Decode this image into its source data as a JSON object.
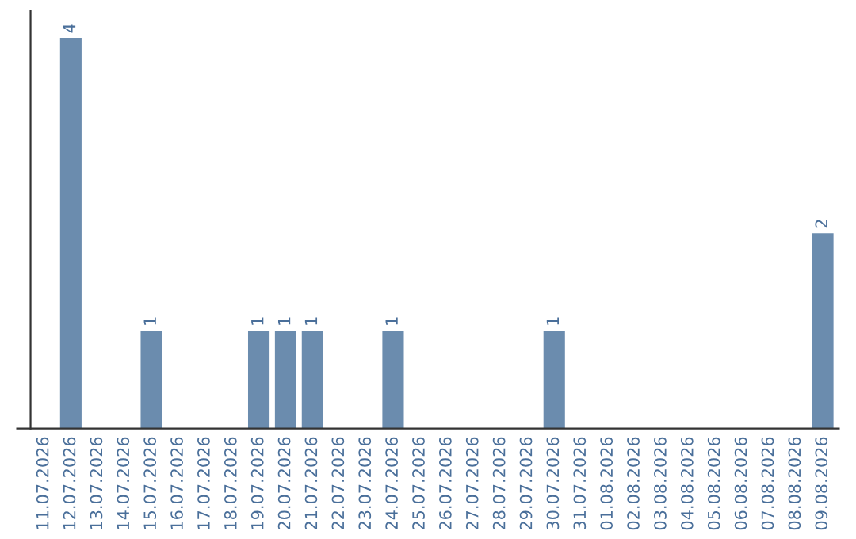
{
  "chart_data": {
    "type": "bar",
    "categories": [
      "11.07.2026",
      "12.07.2026",
      "13.07.2026",
      "14.07.2026",
      "15.07.2026",
      "16.07.2026",
      "17.07.2026",
      "18.07.2026",
      "19.07.2026",
      "20.07.2026",
      "21.07.2026",
      "22.07.2026",
      "23.07.2026",
      "24.07.2026",
      "25.07.2026",
      "26.07.2026",
      "27.07.2026",
      "28.07.2026",
      "29.07.2026",
      "30.07.2026",
      "31.07.2026",
      "01.08.2026",
      "02.08.2026",
      "03.08.2026",
      "04.08.2026",
      "05.08.2026",
      "06.08.2026",
      "07.08.2026",
      "08.08.2026",
      "09.08.2026"
    ],
    "values": [
      0,
      4,
      0,
      0,
      1,
      0,
      0,
      0,
      1,
      1,
      1,
      0,
      0,
      1,
      0,
      0,
      0,
      0,
      0,
      1,
      0,
      0,
      0,
      0,
      0,
      0,
      0,
      0,
      0,
      2
    ],
    "value_labels": [
      null,
      "4",
      null,
      null,
      "1",
      null,
      null,
      null,
      "1",
      "1",
      "1",
      null,
      null,
      "1",
      null,
      null,
      null,
      null,
      null,
      "1",
      null,
      null,
      null,
      null,
      null,
      null,
      null,
      null,
      null,
      "2"
    ],
    "color": "#6b8cae",
    "tick_labels": "x",
    "grid": false,
    "legend": false
  }
}
